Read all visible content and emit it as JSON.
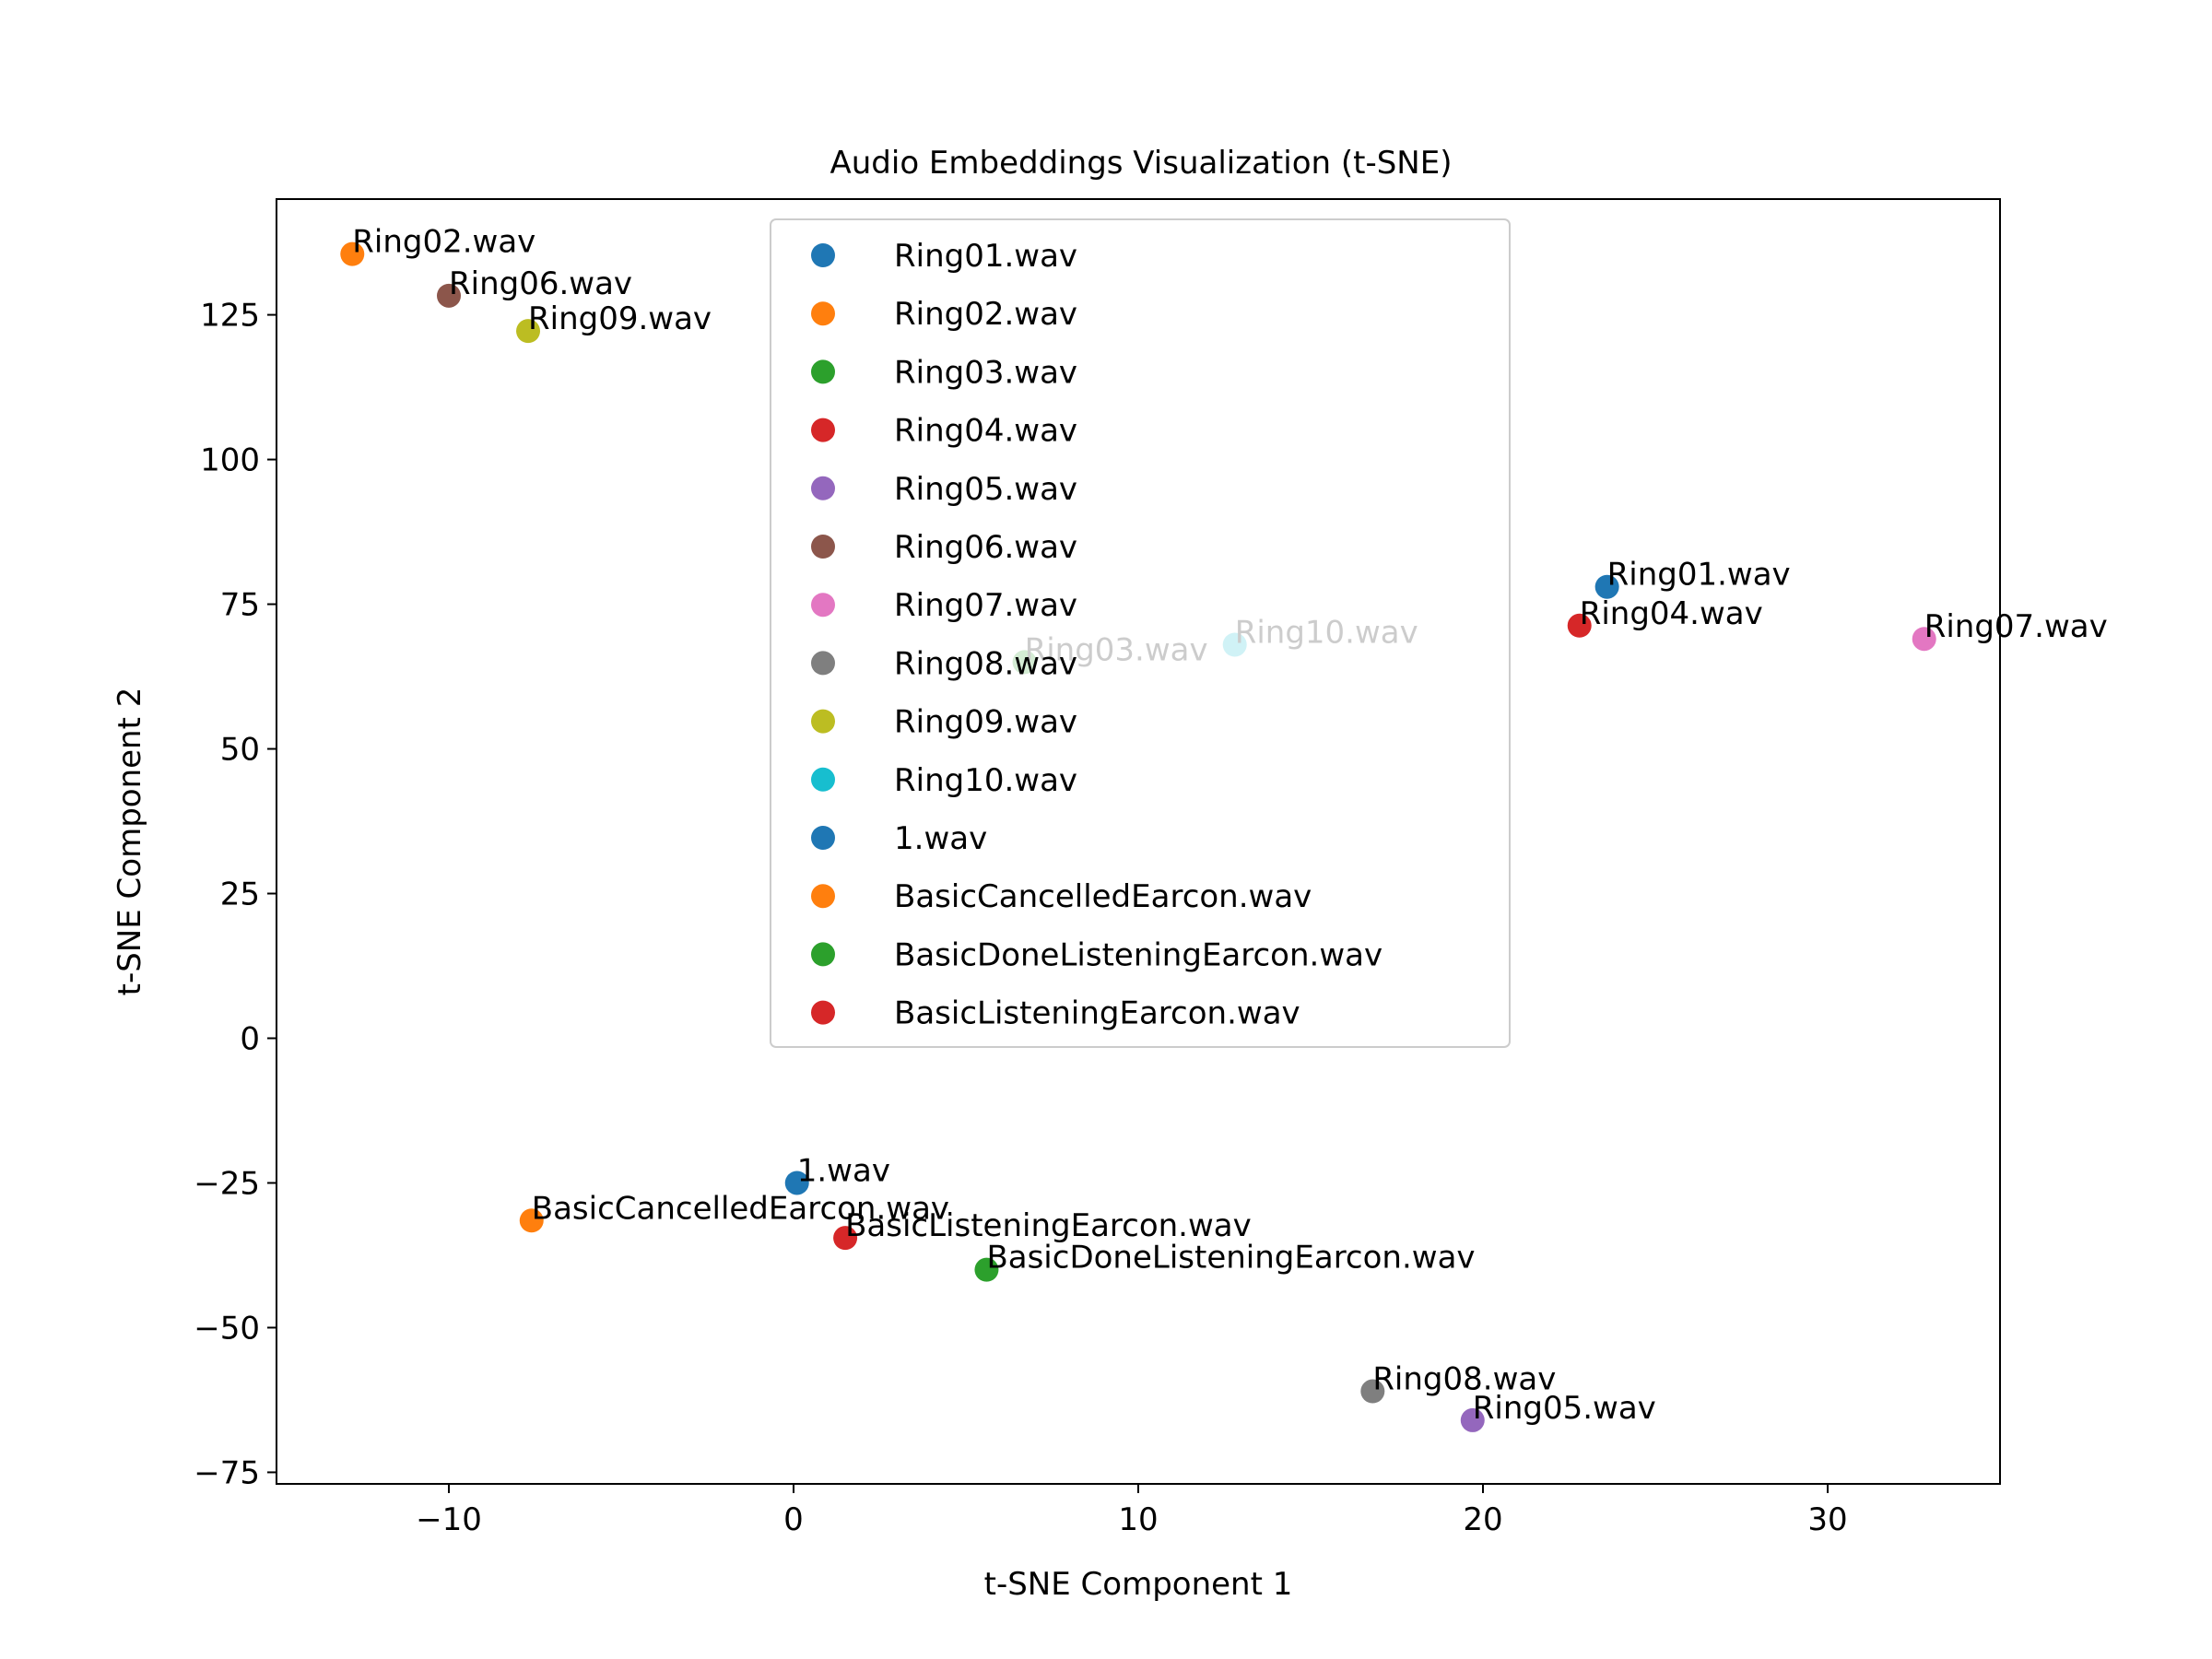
{
  "chart_data": {
    "type": "scatter",
    "title": "Audio Embeddings Visualization (t-SNE)",
    "xlabel": "t-SNE Component 1",
    "ylabel": "t-SNE Component 2",
    "xlim": [
      -15,
      35
    ],
    "ylim": [
      -77,
      145
    ],
    "xticks": [
      -10,
      0,
      10,
      20,
      30
    ],
    "yticks": [
      -75,
      -50,
      -25,
      0,
      25,
      50,
      75,
      100,
      125
    ],
    "grid": false,
    "legend_position": "upper-center",
    "series": [
      {
        "name": "Ring01.wav",
        "color": "#1f77b4",
        "x": 23.6,
        "y": 78
      },
      {
        "name": "Ring02.wav",
        "color": "#ff7f0e",
        "x": -12.8,
        "y": 135.5
      },
      {
        "name": "Ring03.wav",
        "color": "#2ca02c",
        "x": 6.7,
        "y": 65
      },
      {
        "name": "Ring04.wav",
        "color": "#d62728",
        "x": 22.8,
        "y": 71.3
      },
      {
        "name": "Ring05.wav",
        "color": "#9467bd",
        "x": 19.7,
        "y": -66
      },
      {
        "name": "Ring06.wav",
        "color": "#8c564b",
        "x": -10,
        "y": 128.3
      },
      {
        "name": "Ring07.wav",
        "color": "#e377c2",
        "x": 32.8,
        "y": 69
      },
      {
        "name": "Ring08.wav",
        "color": "#7f7f7f",
        "x": 16.8,
        "y": -61
      },
      {
        "name": "Ring09.wav",
        "color": "#bcbd22",
        "x": -7.7,
        "y": 122.2
      },
      {
        "name": "Ring10.wav",
        "color": "#17becf",
        "x": 12.8,
        "y": 68
      },
      {
        "name": "1.wav",
        "color": "#1f77b4",
        "x": 0.1,
        "y": -25
      },
      {
        "name": "BasicCancelledEarcon.wav",
        "color": "#ff7f0e",
        "x": -7.6,
        "y": -31.5
      },
      {
        "name": "BasicDoneListeningEarcon.wav",
        "color": "#2ca02c",
        "x": 5.6,
        "y": -40
      },
      {
        "name": "BasicListeningEarcon.wav",
        "color": "#d62728",
        "x": 1.5,
        "y": -34.5
      }
    ]
  }
}
